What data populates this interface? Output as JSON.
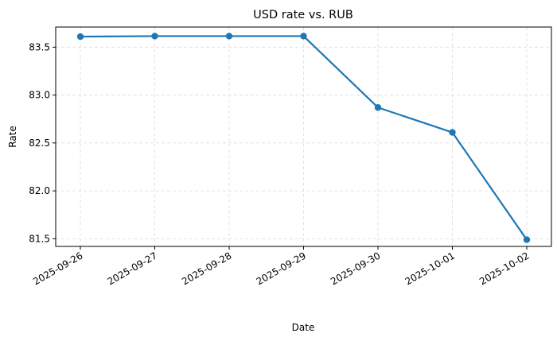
{
  "chart_data": {
    "type": "line",
    "title": "USD rate vs. RUB",
    "xlabel": "Date",
    "ylabel": "Rate",
    "x": [
      "2025-09-26",
      "2025-09-27",
      "2025-09-28",
      "2025-09-29",
      "2025-09-30",
      "2025-10-01",
      "2025-10-02"
    ],
    "series": [
      {
        "values": [
          83.61,
          83.615,
          83.615,
          83.615,
          82.87,
          82.61,
          81.49
        ],
        "color": "#1f77b4"
      }
    ],
    "ylim": [
      81.42,
      83.71
    ],
    "yticks": [
      "81.5",
      "82.0",
      "82.5",
      "83.0",
      "83.5"
    ],
    "grid": true,
    "grid_style": "dashed"
  }
}
